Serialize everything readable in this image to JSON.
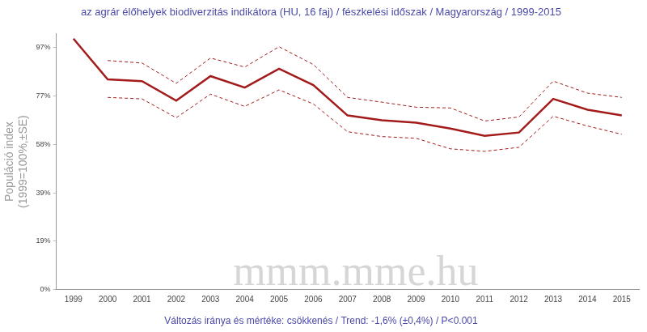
{
  "chart_data": {
    "type": "line",
    "title": "az agrár élőhelyek biodiverzitás indikátora (HU, 16 faj) / fészkelési időszak / Magyarország / 1999-2015",
    "subtitle": "Változás iránya és mértéke: csökkenés / Trend: -1,6% (±0,4%) / P<0.001",
    "y_label": [
      "Populáció index",
      "(1999=100%,±SE)"
    ],
    "watermark": "mmm.mme.hu",
    "categories": [
      "1999",
      "2000",
      "2001",
      "2002",
      "2003",
      "2004",
      "2005",
      "2006",
      "2007",
      "2008",
      "2009",
      "2010",
      "2011",
      "2012",
      "2013",
      "2014",
      "2015"
    ],
    "series": [
      {
        "color": "#a31b1b",
        "line_style": "solid",
        "marker": "none",
        "values": [
          100,
          83.8,
          83.1,
          75.3,
          85.1,
          80.5,
          88,
          81.5,
          69.4,
          67.5,
          66.5,
          64.2,
          61.3,
          62.6,
          76,
          71.7,
          69.4
        ]
      },
      {
        "color": "#a31b1b",
        "line_style": "dashed",
        "marker": "none",
        "values": [
          null,
          91.3,
          90.3,
          82.2,
          92.3,
          88.7,
          96.8,
          89.7,
          76.6,
          74.7,
          72.7,
          72.4,
          67.2,
          68.8,
          83.1,
          78.3,
          76.6
        ]
      },
      {
        "color": "#a31b1b",
        "line_style": "dashed",
        "marker": "none",
        "values": [
          null,
          76.6,
          76,
          68.5,
          77.9,
          73,
          79.6,
          74,
          62.9,
          61,
          60.3,
          56.1,
          55.1,
          56.7,
          69.1,
          65.2,
          61.9
        ]
      }
    ],
    "ylim": [
      0,
      102
    ],
    "yticks": [
      {
        "value": 0,
        "label": "0%"
      },
      {
        "value": 19.3,
        "label": "19%"
      },
      {
        "value": 38.6,
        "label": "39%"
      },
      {
        "value": 57.9,
        "label": "58%"
      },
      {
        "value": 77.2,
        "label": "77%"
      },
      {
        "value": 96.5,
        "label": "97%"
      }
    ],
    "grid": false,
    "legend": "none"
  }
}
